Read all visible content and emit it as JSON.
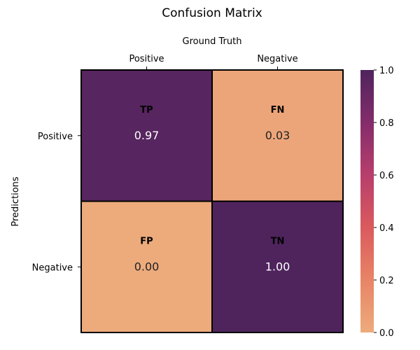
{
  "chart_data": {
    "type": "heatmap",
    "title": "Confusion Matrix",
    "xlabel": "Ground Truth",
    "ylabel": "Predictions",
    "x_categories": [
      "Positive",
      "Negative"
    ],
    "y_categories": [
      "Positive",
      "Negative"
    ],
    "cells": [
      [
        {
          "tag": "TP",
          "value": "0.97",
          "v": 0.97
        },
        {
          "tag": "FN",
          "value": "0.03",
          "v": 0.03
        }
      ],
      [
        {
          "tag": "FP",
          "value": "0.00",
          "v": 0.0
        },
        {
          "tag": "TN",
          "value": "1.00",
          "v": 1.0
        }
      ]
    ],
    "vmin": 0.0,
    "vmax": 1.0,
    "colorbar_ticks": [
      "0.0",
      "0.2",
      "0.4",
      "0.6",
      "0.8",
      "1.0"
    ],
    "colormap": "flare",
    "colors": {
      "low": "#edab7c",
      "high": "#4f245d",
      "text_on_dark": "#ffffff",
      "text_on_light": "#222222",
      "grid": "#000000"
    }
  }
}
